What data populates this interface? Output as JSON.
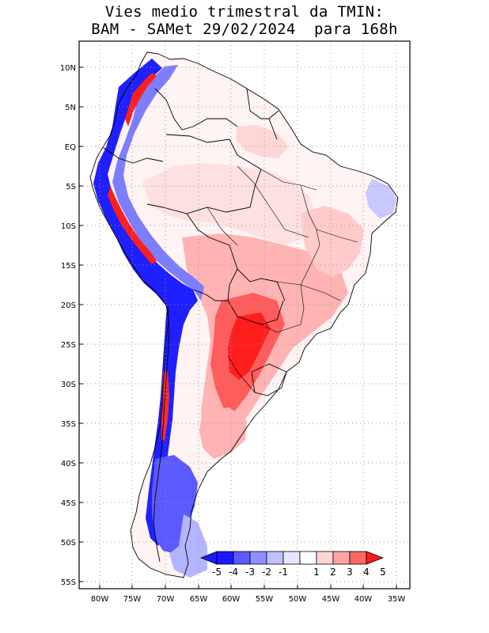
{
  "title": {
    "line1": "Vies medio trimestral da TMIN:",
    "line2": "BAM - SAMet 29/02/2024  para 168h"
  },
  "axes": {
    "lon_labels": [
      "80W",
      "75W",
      "70W",
      "65W",
      "60W",
      "55W",
      "50W",
      "45W",
      "40W",
      "35W"
    ],
    "lat_labels": [
      "10N",
      "5N",
      "EQ",
      "5S",
      "10S",
      "15S",
      "20S",
      "25S",
      "30S",
      "35S",
      "40S",
      "45S",
      "50S",
      "55S"
    ]
  },
  "colorbar": {
    "labels": [
      "-5",
      "-4",
      "-3",
      "-2",
      "-1",
      "1",
      "2",
      "3",
      "4",
      "5"
    ],
    "colors": [
      "#1a1aff",
      "#5a5aff",
      "#8f8fff",
      "#c0c0ff",
      "#e6e6ff",
      "#ffffff",
      "#ffd6d6",
      "#ffa3a3",
      "#ff6666",
      "#ff1a1a"
    ]
  },
  "colors": {
    "frame": "#000000",
    "grid": "#9a9a9a",
    "land_outline": "#000000"
  }
}
